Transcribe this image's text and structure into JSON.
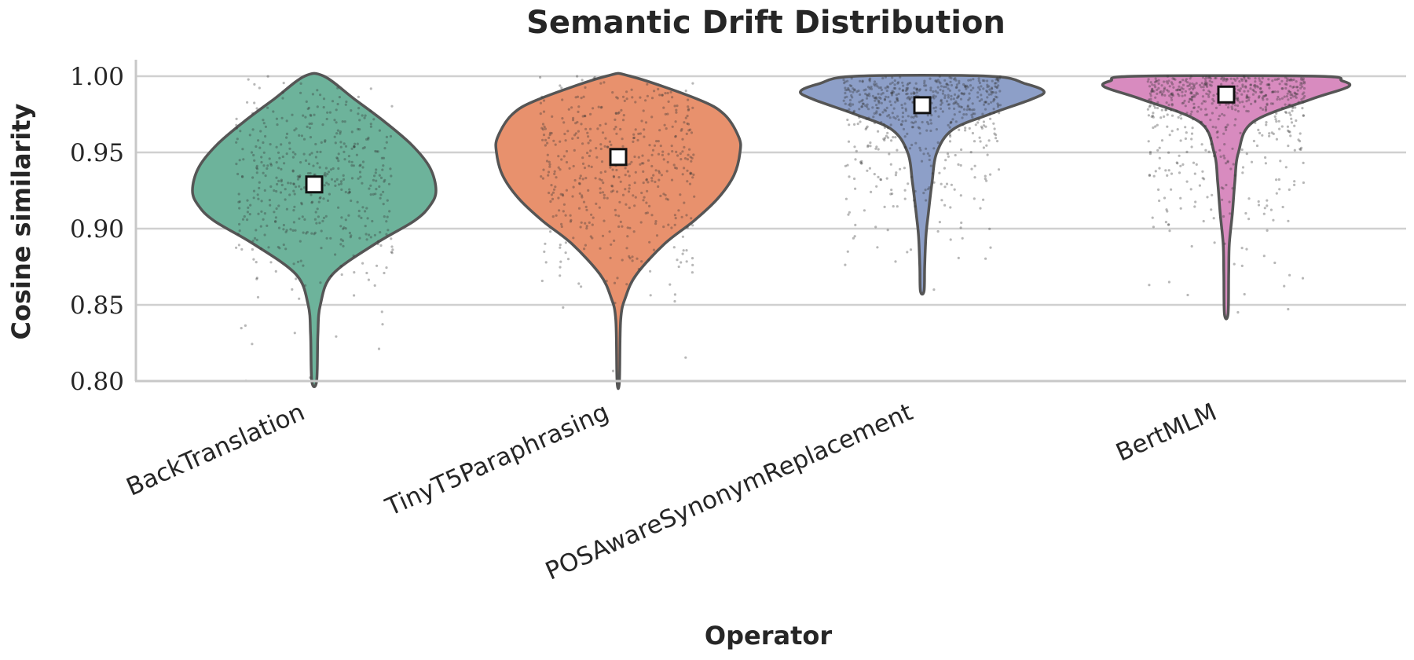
{
  "chart_data": {
    "type": "violin",
    "title": "Semantic Drift Distribution",
    "xlabel": "Operator",
    "ylabel": "Cosine similarity",
    "ylim": [
      0.8,
      1.0
    ],
    "yticks": [
      "0.80",
      "0.85",
      "0.90",
      "0.95",
      "1.00"
    ],
    "ytick_values": [
      0.8,
      0.85,
      0.9,
      0.95,
      1.0
    ],
    "grid": "horizontal",
    "categories": [
      "BackTranslation",
      "TinyT5Paraphrasing",
      "POSAwareSynonymReplacement",
      "BertMLM"
    ],
    "series": [
      {
        "category": "BackTranslation",
        "color": "#6db39b",
        "mean": 0.929,
        "min": 0.8,
        "max": 1.0,
        "density": [
          [
            0.8,
            0.02
          ],
          [
            0.83,
            0.03
          ],
          [
            0.85,
            0.05
          ],
          [
            0.87,
            0.15
          ],
          [
            0.89,
            0.5
          ],
          [
            0.905,
            0.82
          ],
          [
            0.915,
            0.95
          ],
          [
            0.925,
            1.0
          ],
          [
            0.94,
            0.95
          ],
          [
            0.955,
            0.8
          ],
          [
            0.97,
            0.58
          ],
          [
            0.985,
            0.33
          ],
          [
            1.0,
            0.08
          ]
        ]
      },
      {
        "category": "TinyT5Paraphrasing",
        "color": "#e8916d",
        "mean": 0.947,
        "min": 0.8,
        "max": 1.0,
        "density": [
          [
            0.8,
            0.01
          ],
          [
            0.84,
            0.02
          ],
          [
            0.855,
            0.06
          ],
          [
            0.87,
            0.15
          ],
          [
            0.89,
            0.38
          ],
          [
            0.905,
            0.62
          ],
          [
            0.92,
            0.82
          ],
          [
            0.935,
            0.95
          ],
          [
            0.95,
            1.0
          ],
          [
            0.96,
            0.99
          ],
          [
            0.975,
            0.87
          ],
          [
            0.985,
            0.65
          ],
          [
            1.0,
            0.1
          ]
        ]
      },
      {
        "category": "POSAwareSynonymReplacement",
        "color": "#8d9fc8",
        "mean": 0.981,
        "min": 0.859,
        "max": 1.0,
        "density": [
          [
            0.859,
            0.015
          ],
          [
            0.875,
            0.02
          ],
          [
            0.895,
            0.03
          ],
          [
            0.91,
            0.05
          ],
          [
            0.93,
            0.08
          ],
          [
            0.95,
            0.12
          ],
          [
            0.965,
            0.25
          ],
          [
            0.975,
            0.55
          ],
          [
            0.985,
            0.9
          ],
          [
            0.99,
            1.0
          ],
          [
            0.995,
            0.85
          ],
          [
            1.0,
            0.55
          ]
        ]
      },
      {
        "category": "BertMLM",
        "color": "#d88bbf",
        "mean": 0.988,
        "min": 0.844,
        "max": 1.0,
        "density": [
          [
            0.844,
            0.015
          ],
          [
            0.87,
            0.02
          ],
          [
            0.89,
            0.025
          ],
          [
            0.91,
            0.05
          ],
          [
            0.93,
            0.07
          ],
          [
            0.95,
            0.1
          ],
          [
            0.97,
            0.22
          ],
          [
            0.985,
            0.7
          ],
          [
            0.993,
            1.0
          ],
          [
            0.997,
            0.95
          ],
          [
            1.0,
            0.75
          ]
        ]
      }
    ]
  }
}
